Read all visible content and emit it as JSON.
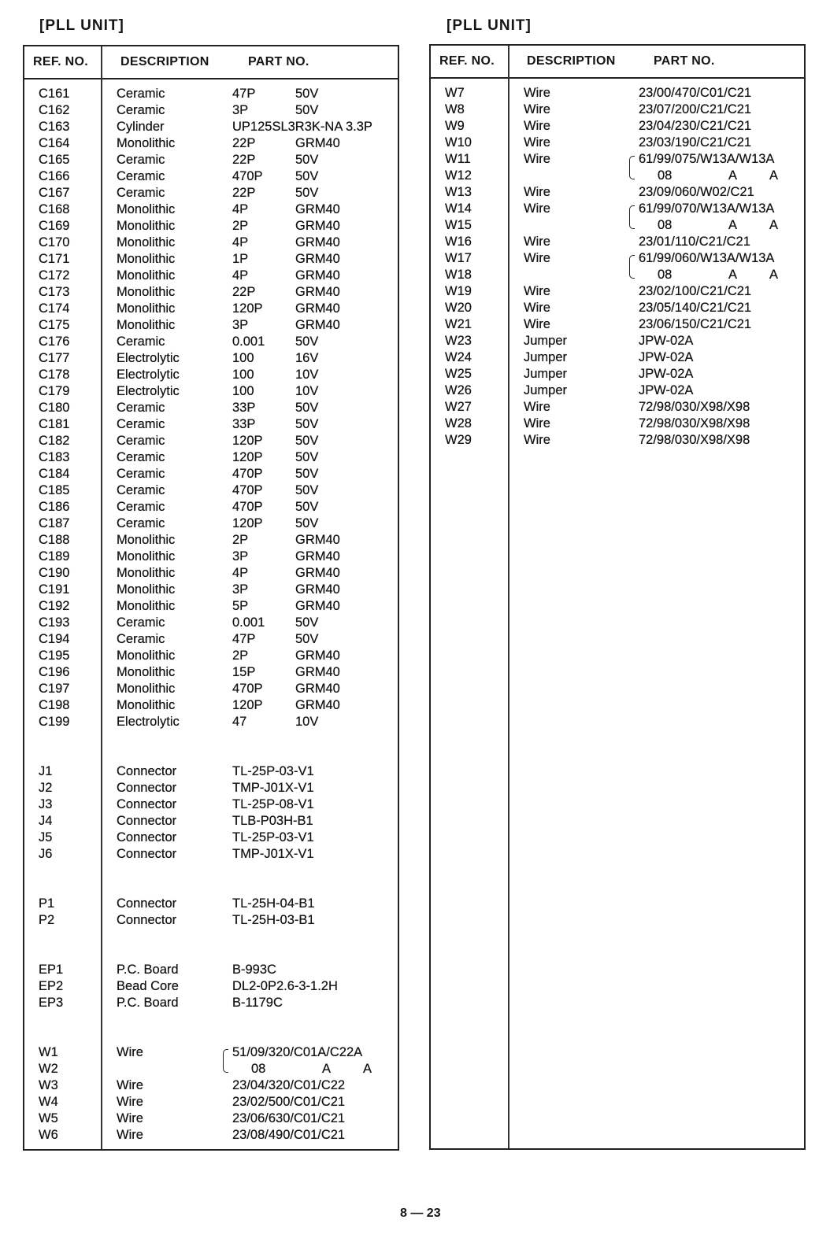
{
  "left": {
    "title": "[PLL UNIT]",
    "headers": {
      "ref": "REF. NO.",
      "desc": "DESCRIPTION",
      "part": "PART NO."
    },
    "rows": [
      {
        "ref": "C161",
        "desc": "Ceramic",
        "part": "47P",
        "spec": "50V"
      },
      {
        "ref": "C162",
        "desc": "Ceramic",
        "part": "3P",
        "spec": "50V"
      },
      {
        "ref": "C163",
        "desc": "Cylinder",
        "part": "UP125SL3R3K-NA  3.3P",
        "spec": ""
      },
      {
        "ref": "C164",
        "desc": "Monolithic",
        "part": "22P",
        "spec": "GRM40"
      },
      {
        "ref": "C165",
        "desc": "Ceramic",
        "part": "22P",
        "spec": "50V"
      },
      {
        "ref": "C166",
        "desc": "Ceramic",
        "part": "470P",
        "spec": "50V"
      },
      {
        "ref": "C167",
        "desc": "Ceramic",
        "part": "22P",
        "spec": "50V"
      },
      {
        "ref": "C168",
        "desc": "Monolithic",
        "part": "4P",
        "spec": "GRM40"
      },
      {
        "ref": "C169",
        "desc": "Monolithic",
        "part": "2P",
        "spec": "GRM40"
      },
      {
        "ref": "C170",
        "desc": "Monolithic",
        "part": "4P",
        "spec": "GRM40"
      },
      {
        "ref": "C171",
        "desc": "Monolithic",
        "part": "1P",
        "spec": "GRM40"
      },
      {
        "ref": "C172",
        "desc": "Monolithic",
        "part": "4P",
        "spec": "GRM40"
      },
      {
        "ref": "C173",
        "desc": "Monolithic",
        "part": "22P",
        "spec": "GRM40"
      },
      {
        "ref": "C174",
        "desc": "Monolithic",
        "part": "120P",
        "spec": "GRM40"
      },
      {
        "ref": "C175",
        "desc": "Monolithic",
        "part": "3P",
        "spec": "GRM40"
      },
      {
        "ref": "C176",
        "desc": "Ceramic",
        "part": "0.001",
        "spec": "50V"
      },
      {
        "ref": "C177",
        "desc": "Electrolytic",
        "part": "100",
        "spec": "16V"
      },
      {
        "ref": "C178",
        "desc": "Electrolytic",
        "part": "100",
        "spec": "10V"
      },
      {
        "ref": "C179",
        "desc": "Electrolytic",
        "part": "100",
        "spec": "10V"
      },
      {
        "ref": "C180",
        "desc": "Ceramic",
        "part": "33P",
        "spec": "50V"
      },
      {
        "ref": "C181",
        "desc": "Ceramic",
        "part": "33P",
        "spec": "50V"
      },
      {
        "ref": "C182",
        "desc": "Ceramic",
        "part": "120P",
        "spec": "50V"
      },
      {
        "ref": "C183",
        "desc": "Ceramic",
        "part": "120P",
        "spec": "50V"
      },
      {
        "ref": "C184",
        "desc": "Ceramic",
        "part": "470P",
        "spec": "50V"
      },
      {
        "ref": "C185",
        "desc": "Ceramic",
        "part": "470P",
        "spec": "50V"
      },
      {
        "ref": "C186",
        "desc": "Ceramic",
        "part": "470P",
        "spec": "50V"
      },
      {
        "ref": "C187",
        "desc": "Ceramic",
        "part": "120P",
        "spec": "50V"
      },
      {
        "ref": "C188",
        "desc": "Monolithic",
        "part": "2P",
        "spec": "GRM40"
      },
      {
        "ref": "C189",
        "desc": "Monolithic",
        "part": "3P",
        "spec": "GRM40"
      },
      {
        "ref": "C190",
        "desc": "Monolithic",
        "part": "4P",
        "spec": "GRM40"
      },
      {
        "ref": "C191",
        "desc": "Monolithic",
        "part": "3P",
        "spec": "GRM40"
      },
      {
        "ref": "C192",
        "desc": "Monolithic",
        "part": "5P",
        "spec": "GRM40"
      },
      {
        "ref": "C193",
        "desc": "Ceramic",
        "part": "0.001",
        "spec": "50V"
      },
      {
        "ref": "C194",
        "desc": "Ceramic",
        "part": "47P",
        "spec": "50V"
      },
      {
        "ref": "C195",
        "desc": "Monolithic",
        "part": "2P",
        "spec": "GRM40"
      },
      {
        "ref": "C196",
        "desc": "Monolithic",
        "part": "15P",
        "spec": "GRM40"
      },
      {
        "ref": "C197",
        "desc": "Monolithic",
        "part": "470P",
        "spec": "GRM40"
      },
      {
        "ref": "C198",
        "desc": "Monolithic",
        "part": "120P",
        "spec": "GRM40"
      },
      {
        "ref": "C199",
        "desc": "Electrolytic",
        "part": "47",
        "spec": "10V"
      },
      {},
      {},
      {
        "ref": "J1",
        "desc": "Connector",
        "part": "TL-25P-03-V1"
      },
      {
        "ref": "J2",
        "desc": "Connector",
        "part": "TMP-J01X-V1"
      },
      {
        "ref": "J3",
        "desc": "Connector",
        "part": "TL-25P-08-V1"
      },
      {
        "ref": "J4",
        "desc": "Connector",
        "part": "TLB-P03H-B1"
      },
      {
        "ref": "J5",
        "desc": "Connector",
        "part": "TL-25P-03-V1"
      },
      {
        "ref": "J6",
        "desc": "Connector",
        "part": "TMP-J01X-V1"
      },
      {},
      {},
      {
        "ref": "P1",
        "desc": "Connector",
        "part": "TL-25H-04-B1"
      },
      {
        "ref": "P2",
        "desc": "Connector",
        "part": "TL-25H-03-B1"
      },
      {},
      {},
      {
        "ref": "EP1",
        "desc": "P.C. Board",
        "part": "B-993C"
      },
      {
        "ref": "EP2",
        "desc": "Bead Core",
        "part": "DL2-0P2.6-3-1.2H"
      },
      {
        "ref": "EP3",
        "desc": "P.C. Board",
        "part": "B-1179C"
      },
      {},
      {},
      {
        "ref": "W1",
        "desc": "Wire",
        "part": "51/09/320/C01A/C22A",
        "bracket": true
      },
      {
        "ref": "W2",
        "desc": "",
        "suffix": [
          "08",
          "A",
          "A"
        ]
      },
      {
        "ref": "W3",
        "desc": "Wire",
        "part": "23/04/320/C01/C22"
      },
      {
        "ref": "W4",
        "desc": "Wire",
        "part": "23/02/500/C01/C21"
      },
      {
        "ref": "W5",
        "desc": "Wire",
        "part": "23/06/630/C01/C21"
      },
      {
        "ref": "W6",
        "desc": "Wire",
        "part": "23/08/490/C01/C21"
      }
    ]
  },
  "right": {
    "title": "[PLL UNIT]",
    "headers": {
      "ref": "REF. NO.",
      "desc": "DESCRIPTION",
      "part": "PART NO."
    },
    "rows": [
      {
        "ref": "W7",
        "desc": "Wire",
        "part": "23/00/470/C01/C21"
      },
      {
        "ref": "W8",
        "desc": "Wire",
        "part": "23/07/200/C21/C21"
      },
      {
        "ref": "W9",
        "desc": "Wire",
        "part": "23/04/230/C21/C21"
      },
      {
        "ref": "W10",
        "desc": "Wire",
        "part": "23/03/190/C21/C21"
      },
      {
        "ref": "W11",
        "desc": "Wire",
        "part": "61/99/075/W13A/W13A",
        "bracket": true
      },
      {
        "ref": "W12",
        "desc": "",
        "suffix": [
          "08",
          "A",
          "A"
        ]
      },
      {
        "ref": "W13",
        "desc": "Wire",
        "part": "23/09/060/W02/C21"
      },
      {
        "ref": "W14",
        "desc": "Wire",
        "part": "61/99/070/W13A/W13A",
        "bracket": true
      },
      {
        "ref": "W15",
        "desc": "",
        "suffix": [
          "08",
          "A",
          "A"
        ]
      },
      {
        "ref": "W16",
        "desc": "Wire",
        "part": "23/01/110/C21/C21"
      },
      {
        "ref": "W17",
        "desc": "Wire",
        "part": "61/99/060/W13A/W13A",
        "bracket": true
      },
      {
        "ref": "W18",
        "desc": "",
        "suffix": [
          "08",
          "A",
          "A"
        ]
      },
      {
        "ref": "W19",
        "desc": "Wire",
        "part": "23/02/100/C21/C21"
      },
      {
        "ref": "W20",
        "desc": "Wire",
        "part": "23/05/140/C21/C21"
      },
      {
        "ref": "W21",
        "desc": "Wire",
        "part": "23/06/150/C21/C21"
      },
      {
        "ref": "W23",
        "desc": "Jumper",
        "part": "JPW-02A"
      },
      {
        "ref": "W24",
        "desc": "Jumper",
        "part": "JPW-02A"
      },
      {
        "ref": "W25",
        "desc": "Jumper",
        "part": "JPW-02A"
      },
      {
        "ref": "W26",
        "desc": "Jumper",
        "part": "JPW-02A"
      },
      {
        "ref": "W27",
        "desc": "Wire",
        "part": "72/98/030/X98/X98"
      },
      {
        "ref": "W28",
        "desc": "Wire",
        "part": "72/98/030/X98/X98"
      },
      {
        "ref": "W29",
        "desc": "Wire",
        "part": "72/98/030/X98/X98"
      }
    ]
  },
  "page_number": "8 — 23"
}
